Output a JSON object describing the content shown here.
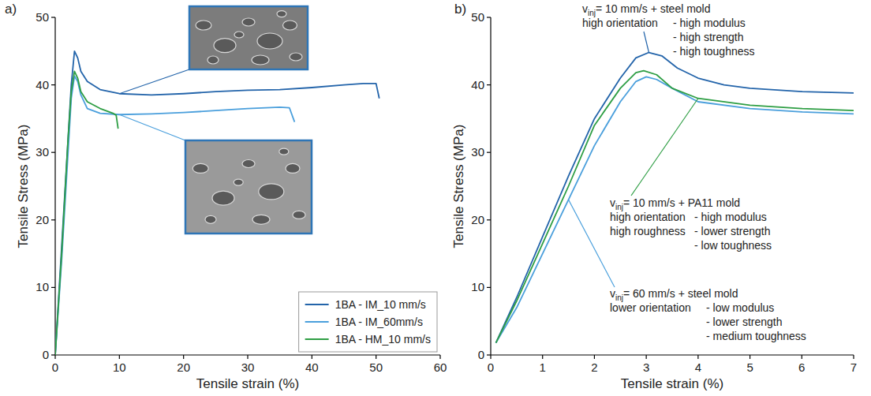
{
  "chart_data": [
    {
      "type": "line",
      "panel_label": "a)",
      "x_label": "Tensile strain (%)",
      "y_label": "Tensile Stress (MPa)",
      "xlim": [
        0,
        60
      ],
      "xticks": [
        0,
        10,
        20,
        30,
        40,
        50,
        60
      ],
      "ylim": [
        0,
        50
      ],
      "yticks": [
        0,
        10,
        20,
        30,
        40,
        50
      ],
      "legend": "lower right",
      "series": [
        {
          "name": "1BA - IM_10 mm/s",
          "color": "#2364aa",
          "x": [
            0,
            1,
            2,
            2.5,
            3,
            3.5,
            4,
            5,
            7,
            10,
            15,
            20,
            25,
            30,
            35,
            40,
            45,
            48,
            50,
            50.5
          ],
          "values": [
            0,
            16,
            32,
            40,
            45,
            44,
            42,
            40.5,
            39.3,
            38.7,
            38.5,
            38.7,
            39,
            39.2,
            39.3,
            39.6,
            40,
            40.2,
            40.2,
            38
          ]
        },
        {
          "name": "1BA - IM_60mm/s",
          "color": "#4a9fdc",
          "x": [
            0,
            1,
            2,
            2.5,
            3,
            3.5,
            4,
            5,
            7,
            10,
            15,
            20,
            25,
            30,
            35,
            36.5,
            37.3
          ],
          "values": [
            0,
            14,
            30,
            38,
            41.3,
            40.5,
            38.5,
            36.5,
            35.8,
            35.6,
            35.7,
            35.9,
            36.2,
            36.5,
            36.7,
            36.6,
            34.5
          ]
        },
        {
          "name": "1BA - HM_10 mm/s",
          "color": "#2e9e44",
          "x": [
            0,
            1,
            2,
            2.5,
            3,
            3.5,
            4,
            5,
            7,
            9,
            9.5,
            9.8
          ],
          "values": [
            0,
            15,
            32,
            39,
            42,
            41,
            39,
            37.5,
            36.5,
            35.8,
            35.5,
            33.5
          ]
        }
      ]
    },
    {
      "type": "line",
      "panel_label": "b)",
      "x_label": "Tensile strain (%)",
      "y_label": "Tensile Stress (MPa)",
      "xlim": [
        0,
        7
      ],
      "xticks": [
        0,
        1,
        2,
        3,
        4,
        5,
        6,
        7
      ],
      "ylim": [
        0,
        50
      ],
      "yticks": [
        0,
        10,
        20,
        30,
        40,
        50
      ],
      "series": [
        {
          "color": "#2364aa",
          "x": [
            0.1,
            0.5,
            1,
            1.5,
            2,
            2.5,
            2.8,
            3.05,
            3.3,
            3.6,
            4,
            4.5,
            5,
            6,
            7
          ],
          "values": [
            1.8,
            8.5,
            17.5,
            26.5,
            35,
            41,
            44,
            44.8,
            44.3,
            42.5,
            41,
            40,
            39.5,
            39,
            38.8
          ]
        },
        {
          "color": "#4a9fdc",
          "x": [
            0.1,
            0.5,
            1,
            1.5,
            2,
            2.5,
            2.8,
            3,
            3.2,
            3.5,
            4,
            5,
            6,
            7
          ],
          "values": [
            1.8,
            7,
            15,
            23,
            31,
            37.5,
            40.5,
            41.2,
            40.8,
            39.5,
            37.5,
            36.5,
            36,
            35.7
          ]
        },
        {
          "color": "#2e9e44",
          "x": [
            0.1,
            0.5,
            1,
            1.5,
            2,
            2.5,
            2.8,
            2.95,
            3.2,
            3.5,
            4,
            5,
            6,
            7
          ],
          "values": [
            1.8,
            8,
            16.5,
            25,
            34,
            39.5,
            41.8,
            42.1,
            41.5,
            39.5,
            38,
            37,
            36.5,
            36.2
          ]
        }
      ],
      "annotations": [
        {
          "symbol": "v",
          "subscript": "inj",
          "text": "= 10 mm/s + steel mold",
          "conditions": [
            "high orientation"
          ],
          "properties": [
            "- high modulus",
            "- high strength",
            "- high toughness"
          ]
        },
        {
          "symbol": "v",
          "subscript": "inj",
          "text": "= 10 mm/s + PA11 mold",
          "conditions": [
            "high orientation",
            "high roughness"
          ],
          "properties": [
            "- high modulus",
            "- lower strength",
            "- low toughness"
          ]
        },
        {
          "symbol": "v",
          "subscript": "inj",
          "text": "= 60 mm/s + steel mold",
          "conditions": [
            "lower orientation"
          ],
          "properties": [
            "- low modulus",
            "- lower strength",
            "- medium toughness"
          ]
        }
      ]
    }
  ]
}
